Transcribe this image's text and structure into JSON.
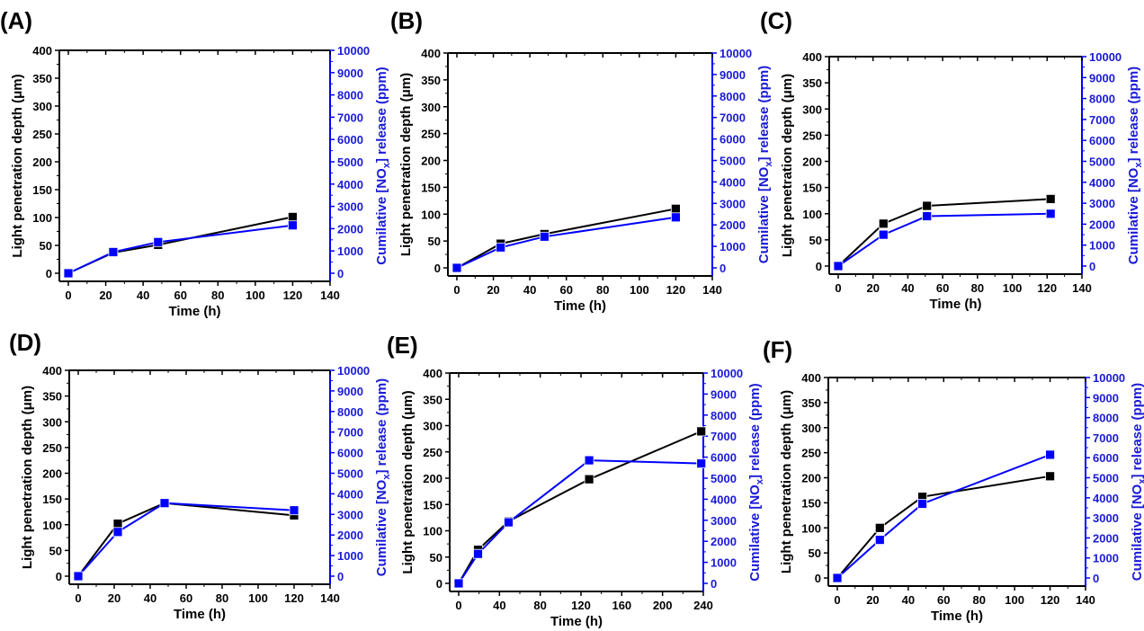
{
  "figure": {
    "colors": {
      "series_depth": "#000000",
      "series_nox": "#0000ff",
      "right_axis": "#1a1ad6"
    }
  },
  "chart_data": [
    {
      "panel": "(A)",
      "type": "line",
      "xlabel": "Time (h)",
      "ylabel": "Light penetration depth (μm)",
      "ylabel_right": "Cumilative [NOx] release (ppm)",
      "xlim": [
        0,
        140
      ],
      "xticks": [
        0,
        20,
        40,
        60,
        80,
        100,
        120,
        140
      ],
      "ylim": [
        0,
        400
      ],
      "yticks": [
        0,
        50,
        100,
        150,
        200,
        250,
        300,
        350,
        400
      ],
      "ylim_right": [
        0,
        10000
      ],
      "yticks_right": [
        0,
        1000,
        2000,
        3000,
        4000,
        5000,
        6000,
        7000,
        8000,
        9000,
        10000
      ],
      "series": [
        {
          "name": "Light penetration depth",
          "axis": "left",
          "marker": "square",
          "x": [
            0,
            24,
            48,
            120
          ],
          "y": [
            0,
            37,
            51,
            101
          ]
        },
        {
          "name": "Cumulative NOx release",
          "axis": "right",
          "marker": "square",
          "x": [
            0,
            24,
            48,
            120
          ],
          "y": [
            0,
            950,
            1400,
            2150
          ]
        }
      ]
    },
    {
      "panel": "(B)",
      "type": "line",
      "xlabel": "Time (h)",
      "ylabel": "Light penetration depth (μm)",
      "ylabel_right": "Cumilative [NOx] release (ppm)",
      "xlim": [
        0,
        140
      ],
      "xticks": [
        0,
        20,
        40,
        60,
        80,
        100,
        120,
        140
      ],
      "ylim": [
        0,
        400
      ],
      "yticks": [
        0,
        50,
        100,
        150,
        200,
        250,
        300,
        350,
        400
      ],
      "ylim_right": [
        0,
        10000
      ],
      "yticks_right": [
        0,
        1000,
        2000,
        3000,
        4000,
        5000,
        6000,
        7000,
        8000,
        9000,
        10000
      ],
      "series": [
        {
          "name": "Light penetration depth",
          "axis": "left",
          "marker": "square",
          "x": [
            0,
            24,
            48,
            120
          ],
          "y": [
            0,
            45,
            63,
            110
          ]
        },
        {
          "name": "Cumulative NOx release",
          "axis": "right",
          "marker": "square",
          "x": [
            0,
            24,
            48,
            120
          ],
          "y": [
            0,
            950,
            1450,
            2350
          ]
        }
      ]
    },
    {
      "panel": "(C)",
      "type": "line",
      "xlabel": "Time (h)",
      "ylabel": "Light penetration depth (μm)",
      "ylabel_right": "Cumilative [NOx] release (ppm)",
      "xlim": [
        0,
        140
      ],
      "xticks": [
        0,
        20,
        40,
        60,
        80,
        100,
        120,
        140
      ],
      "ylim": [
        0,
        400
      ],
      "yticks": [
        0,
        50,
        100,
        150,
        200,
        250,
        300,
        350,
        400
      ],
      "ylim_right": [
        0,
        10000
      ],
      "yticks_right": [
        0,
        1000,
        2000,
        3000,
        4000,
        5000,
        6000,
        7000,
        8000,
        9000,
        10000
      ],
      "series": [
        {
          "name": "Light penetration depth",
          "axis": "left",
          "marker": "square",
          "x": [
            0,
            26,
            51,
            122
          ],
          "y": [
            0,
            81,
            115,
            128
          ]
        },
        {
          "name": "Cumulative NOx release",
          "axis": "right",
          "marker": "square",
          "x": [
            0,
            26,
            51,
            122
          ],
          "y": [
            0,
            1500,
            2380,
            2500
          ]
        }
      ]
    },
    {
      "panel": "(D)",
      "type": "line",
      "xlabel": "Time (h)",
      "ylabel": "Light penetration depth (μm)",
      "ylabel_right": "Cumilative [NOx] release (ppm)",
      "xlim": [
        0,
        140
      ],
      "xticks": [
        0,
        20,
        40,
        60,
        80,
        100,
        120,
        140
      ],
      "ylim": [
        0,
        400
      ],
      "yticks": [
        0,
        50,
        100,
        150,
        200,
        250,
        300,
        350,
        400
      ],
      "ylim_right": [
        0,
        10000
      ],
      "yticks_right": [
        0,
        1000,
        2000,
        3000,
        4000,
        5000,
        6000,
        7000,
        8000,
        9000,
        10000
      ],
      "series": [
        {
          "name": "Light penetration depth",
          "axis": "left",
          "marker": "square",
          "x": [
            0,
            22,
            48,
            120
          ],
          "y": [
            0,
            102,
            142,
            118
          ]
        },
        {
          "name": "Cumulative NOx release",
          "axis": "right",
          "marker": "square",
          "x": [
            0,
            22,
            48,
            120
          ],
          "y": [
            0,
            2150,
            3550,
            3200
          ]
        }
      ]
    },
    {
      "panel": "(E)",
      "type": "line",
      "xlabel": "Time (h)",
      "ylabel": "Light penetration depth (μm)",
      "ylabel_right": "Cumilative [NOx] release (ppm)",
      "xlim": [
        0,
        240
      ],
      "xticks": [
        0,
        40,
        80,
        120,
        160,
        200,
        240
      ],
      "ylim": [
        0,
        400
      ],
      "yticks": [
        0,
        50,
        100,
        150,
        200,
        250,
        300,
        350,
        400
      ],
      "ylim_right": [
        0,
        10000
      ],
      "yticks_right": [
        0,
        1000,
        2000,
        3000,
        4000,
        5000,
        6000,
        7000,
        8000,
        9000,
        10000
      ],
      "series": [
        {
          "name": "Light penetration depth",
          "axis": "left",
          "marker": "square",
          "x": [
            0,
            19,
            49,
            128,
            238
          ],
          "y": [
            0,
            64,
            118,
            198,
            289
          ]
        },
        {
          "name": "Cumulative NOx release",
          "axis": "right",
          "marker": "square",
          "x": [
            0,
            19,
            49,
            128,
            238
          ],
          "y": [
            0,
            1400,
            2900,
            5850,
            5700
          ]
        }
      ]
    },
    {
      "panel": "(F)",
      "type": "line",
      "xlabel": "Time (h)",
      "ylabel": "Light penetration depth (μm)",
      "ylabel_right": "Cumilative [NOx] release (ppm)",
      "xlim": [
        0,
        140
      ],
      "xticks": [
        0,
        20,
        40,
        60,
        80,
        100,
        120,
        140
      ],
      "ylim": [
        0,
        400
      ],
      "yticks": [
        0,
        50,
        100,
        150,
        200,
        250,
        300,
        350,
        400
      ],
      "ylim_right": [
        0,
        10000
      ],
      "yticks_right": [
        0,
        1000,
        2000,
        3000,
        4000,
        5000,
        6000,
        7000,
        8000,
        9000,
        10000
      ],
      "series": [
        {
          "name": "Light penetration depth",
          "axis": "left",
          "marker": "square",
          "x": [
            0,
            24,
            48,
            120
          ],
          "y": [
            0,
            100,
            162,
            203
          ]
        },
        {
          "name": "Cumulative NOx release",
          "axis": "right",
          "marker": "square",
          "x": [
            0,
            24,
            48,
            120
          ],
          "y": [
            0,
            1900,
            3700,
            6150
          ]
        }
      ]
    }
  ]
}
